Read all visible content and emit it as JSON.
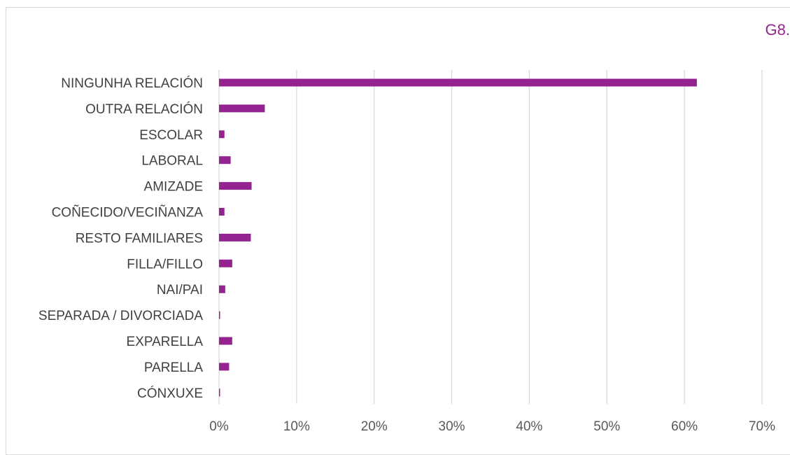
{
  "figure_id": "G8.",
  "colors": {
    "bar": "#95238f",
    "grid": "#d9d9d9",
    "badge": "#95238f"
  },
  "chart_data": {
    "type": "bar",
    "orientation": "horizontal",
    "categories": [
      "NINGUNHA RELACIÓN",
      "OUTRA RELACIÓN",
      "ESCOLAR",
      "LABORAL",
      "AMIZADE",
      "COÑECIDO/VECIÑANZA",
      "RESTO FAMILIARES",
      "FILLA/FILLO",
      "NAI/PAI",
      "SEPARADA / DIVORCIADA",
      "EXPARELLA",
      "PARELLA",
      "CÓNXUXE"
    ],
    "values": [
      61.6,
      5.9,
      0.7,
      1.5,
      4.2,
      0.7,
      4.1,
      1.7,
      0.8,
      0.1,
      1.7,
      1.3,
      0.1
    ],
    "xlim": [
      0,
      70
    ],
    "xticks": [
      0,
      10,
      20,
      30,
      40,
      50,
      60,
      70
    ],
    "xtick_labels": [
      "0%",
      "10%",
      "20%",
      "30%",
      "40%",
      "50%",
      "60%",
      "70%"
    ],
    "grid": true,
    "legend": "none"
  }
}
